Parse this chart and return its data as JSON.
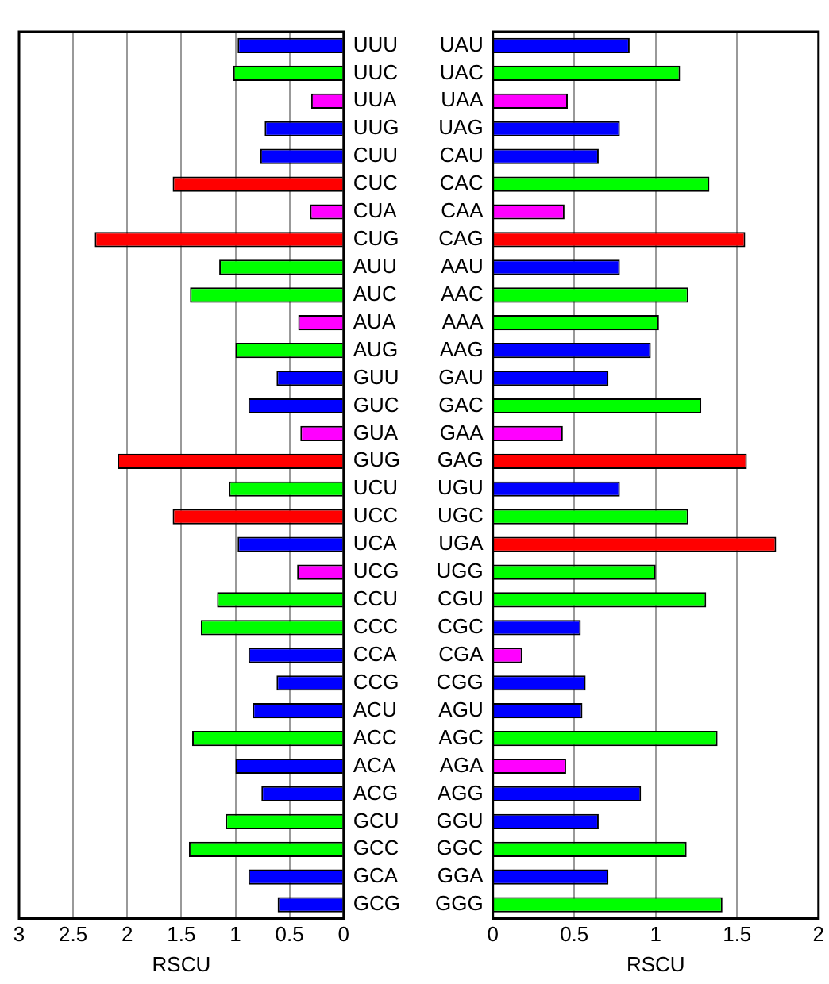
{
  "chart_data": [
    {
      "type": "bar",
      "orientation": "horizontal",
      "xlabel": "RSCU",
      "xlim": [
        3,
        0
      ],
      "xticks": [
        0,
        0.5,
        1,
        1.5,
        2,
        2.5,
        3
      ],
      "grid": "x",
      "categories": [
        "UUU",
        "UUC",
        "UUA",
        "UUG",
        "CUU",
        "CUC",
        "CUA",
        "CUG",
        "AUU",
        "AUC",
        "AUA",
        "AUG",
        "GUU",
        "GUC",
        "GUA",
        "GUG",
        "UCU",
        "UCC",
        "UCA",
        "UCG",
        "CCU",
        "CCC",
        "CCA",
        "CCG",
        "ACU",
        "ACC",
        "ACA",
        "ACG",
        "GCU",
        "GCC",
        "GCA",
        "GCG"
      ],
      "values": [
        0.98,
        1.02,
        0.3,
        0.73,
        0.77,
        1.58,
        0.31,
        2.3,
        1.15,
        1.42,
        0.42,
        1.0,
        0.62,
        0.88,
        0.4,
        2.09,
        1.06,
        1.58,
        0.98,
        0.43,
        1.17,
        1.32,
        0.88,
        0.62,
        0.84,
        1.4,
        1.0,
        0.76,
        1.09,
        1.43,
        0.88,
        0.61
      ],
      "colors": [
        "#0000ff",
        "#00ff00",
        "#ff00ff",
        "#0000ff",
        "#0000ff",
        "#ff0000",
        "#ff00ff",
        "#ff0000",
        "#00ff00",
        "#00ff00",
        "#ff00ff",
        "#00ff00",
        "#0000ff",
        "#0000ff",
        "#ff00ff",
        "#ff0000",
        "#00ff00",
        "#ff0000",
        "#0000ff",
        "#ff00ff",
        "#00ff00",
        "#00ff00",
        "#0000ff",
        "#0000ff",
        "#0000ff",
        "#00ff00",
        "#0000ff",
        "#0000ff",
        "#00ff00",
        "#00ff00",
        "#0000ff",
        "#0000ff"
      ]
    },
    {
      "type": "bar",
      "orientation": "horizontal",
      "xlabel": "RSCU",
      "xlim": [
        0,
        2
      ],
      "xticks": [
        0,
        0.5,
        1,
        1.5,
        2
      ],
      "grid": "x",
      "categories": [
        "UAU",
        "UAC",
        "UAA",
        "UAG",
        "CAU",
        "CAC",
        "CAA",
        "CAG",
        "AAU",
        "AAC",
        "AAA",
        "AAG",
        "GAU",
        "GAC",
        "GAA",
        "GAG",
        "UGU",
        "UGC",
        "UGA",
        "UGG",
        "CGU",
        "CGC",
        "CGA",
        "CGG",
        "AGU",
        "AGC",
        "AGA",
        "AGG",
        "GGU",
        "GGC",
        "GGA",
        "GGG"
      ],
      "values": [
        0.84,
        1.15,
        0.46,
        0.78,
        0.65,
        1.33,
        0.44,
        1.55,
        0.78,
        1.2,
        1.02,
        0.97,
        0.71,
        1.28,
        0.43,
        1.56,
        0.78,
        1.2,
        1.74,
        1.0,
        1.31,
        0.54,
        0.18,
        0.57,
        0.55,
        1.38,
        0.45,
        0.91,
        0.65,
        1.19,
        0.71,
        1.41
      ],
      "colors": [
        "#0000ff",
        "#00ff00",
        "#ff00ff",
        "#0000ff",
        "#0000ff",
        "#00ff00",
        "#ff00ff",
        "#ff0000",
        "#0000ff",
        "#00ff00",
        "#00ff00",
        "#0000ff",
        "#0000ff",
        "#00ff00",
        "#ff00ff",
        "#ff0000",
        "#0000ff",
        "#00ff00",
        "#ff0000",
        "#00ff00",
        "#00ff00",
        "#0000ff",
        "#ff00ff",
        "#0000ff",
        "#0000ff",
        "#00ff00",
        "#ff00ff",
        "#0000ff",
        "#0000ff",
        "#00ff00",
        "#0000ff",
        "#00ff00"
      ]
    }
  ]
}
